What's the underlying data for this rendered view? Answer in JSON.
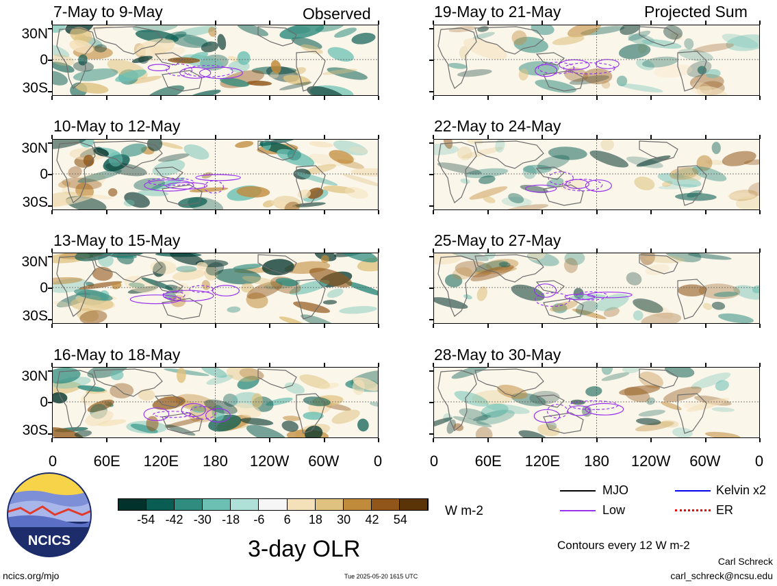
{
  "panels": [
    {
      "title": "7-May to 9-May",
      "tag": "Observed"
    },
    {
      "title": "10-May to 12-May",
      "tag": ""
    },
    {
      "title": "13-May to 15-May",
      "tag": ""
    },
    {
      "title": "16-May to 18-May",
      "tag": ""
    },
    {
      "title": "19-May to 21-May",
      "tag": "Projected Sum"
    },
    {
      "title": "22-May to 24-May",
      "tag": ""
    },
    {
      "title": "25-May to 27-May",
      "tag": ""
    },
    {
      "title": "28-May to 30-May",
      "tag": ""
    }
  ],
  "lat_labels": [
    "30N",
    "0",
    "30S"
  ],
  "lon_labels": [
    "0",
    "60E",
    "120E",
    "180",
    "120W",
    "60W",
    "0"
  ],
  "colorbar": {
    "ticks": [
      "-54",
      "-42",
      "-30",
      "-18",
      "-6",
      "6",
      "18",
      "30",
      "42",
      "54"
    ],
    "colors": [
      "#01332c",
      "#0a5d52",
      "#2f8c7f",
      "#6cc0b3",
      "#b0e1d8",
      "#f6f6f6",
      "#f4e0b9",
      "#dfc27f",
      "#c18b3c",
      "#91571a",
      "#5a3407"
    ],
    "units": "W m-2"
  },
  "main_title": "3-day OLR",
  "legend": [
    {
      "label": "MJO",
      "color": "#000000",
      "style": "solid"
    },
    {
      "label": "Kelvin x2",
      "color": "#0000ee",
      "style": "solid"
    },
    {
      "label": "Low",
      "color": "#9933ee",
      "style": "solid"
    },
    {
      "label": "ER",
      "color": "#ee0000",
      "style": "dotted"
    }
  ],
  "contour_note": "Contours every 12 W m-2",
  "author": "Carl Schreck",
  "email": "carl_schreck@ncsu.edu",
  "website": "ncics.org/mjo",
  "timestamp": "Tue 2025-05-20 1615 UTC",
  "logo_text": "NCICS"
}
